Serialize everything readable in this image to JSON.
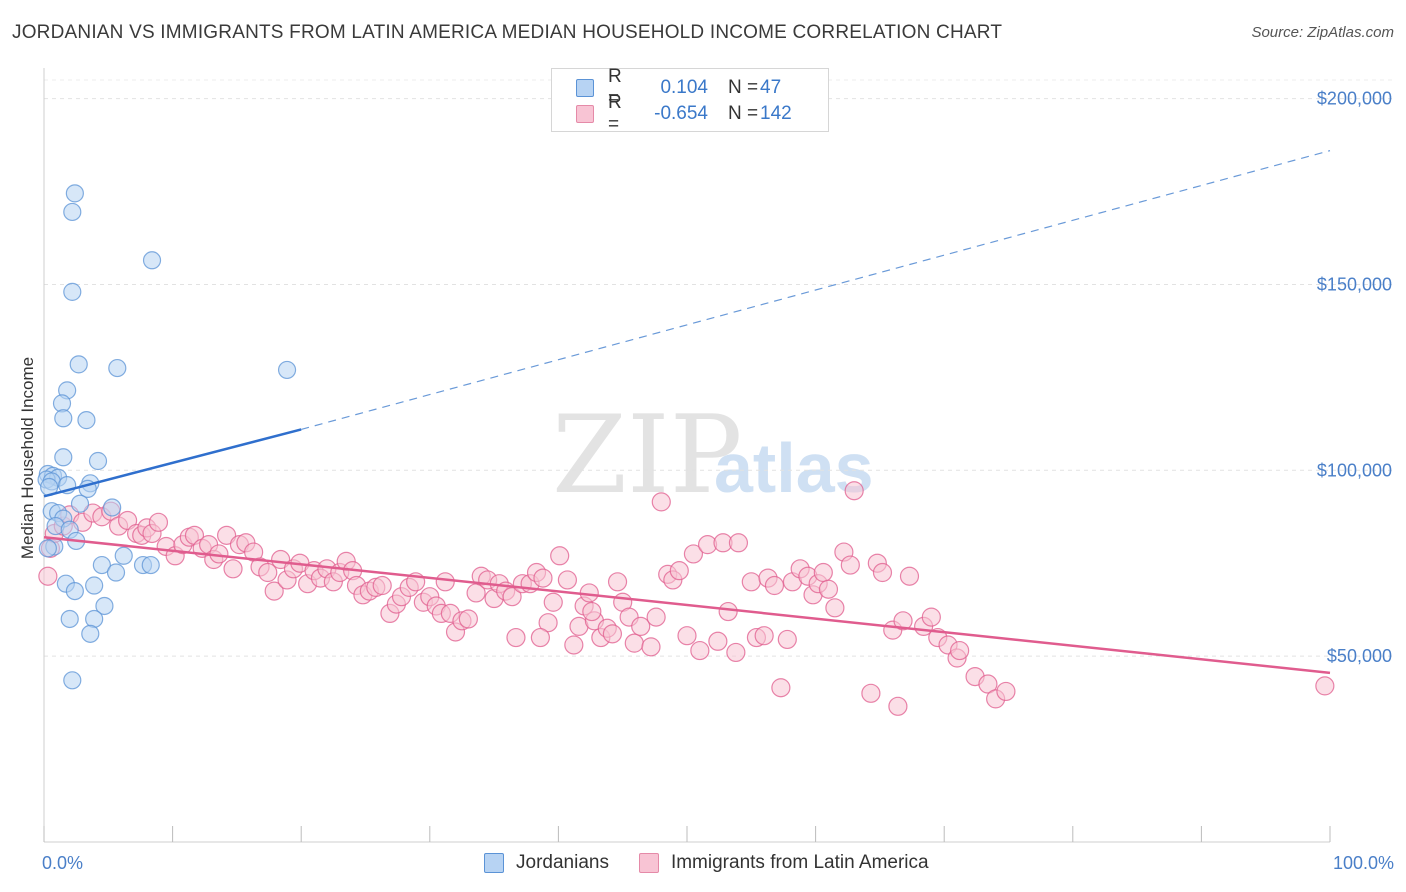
{
  "title": "JORDANIAN VS IMMIGRANTS FROM LATIN AMERICA MEDIAN HOUSEHOLD INCOME CORRELATION CHART",
  "source": "Source: ZipAtlas.com",
  "watermark": {
    "zip": "ZIP",
    "atlas": "atlas"
  },
  "legend": {
    "r_label": "R =",
    "n_label": "N =",
    "rows": [
      {
        "r": "0.104",
        "n": "47",
        "fill": "#b7d3f3",
        "stroke": "#5b93d6"
      },
      {
        "r": "-0.654",
        "n": "142",
        "fill": "#f8c4d4",
        "stroke": "#e58aa8"
      }
    ]
  },
  "bottom_legend": [
    {
      "label": "Jordanians",
      "fill": "#b7d3f3",
      "stroke": "#5b93d6"
    },
    {
      "label": "Immigrants from Latin America",
      "fill": "#f8c4d4",
      "stroke": "#e58aa8"
    }
  ],
  "chart_data": {
    "type": "scatter",
    "title": "JORDANIAN VS IMMIGRANTS FROM LATIN AMERICA MEDIAN HOUSEHOLD INCOME CORRELATION CHART",
    "xlabel": "",
    "ylabel": "Median Household Income",
    "xlim": [
      0,
      100
    ],
    "ylim": [
      0,
      205000
    ],
    "x_tick_labels": {
      "min": "0.0%",
      "max": "100.0%"
    },
    "y_ticks": [
      {
        "value": 50000,
        "label": "$50,000"
      },
      {
        "value": 100000,
        "label": "$100,000"
      },
      {
        "value": 150000,
        "label": "$150,000"
      },
      {
        "value": 200000,
        "label": "$200,000"
      }
    ],
    "grid": true,
    "legend_position": "top-center",
    "series": [
      {
        "name": "Jordanians",
        "color": "#5b93d6",
        "fill": "#b7d3f3",
        "trend": {
          "x0": 0,
          "y0": 93000,
          "x1": 20,
          "y1": 111000,
          "dash_to_x": 100,
          "dash_to_y": 186000
        },
        "points": [
          [
            2.4,
            174500
          ],
          [
            2.2,
            169500
          ],
          [
            8.4,
            156500
          ],
          [
            2.2,
            148000
          ],
          [
            2.7,
            128500
          ],
          [
            5.7,
            127500
          ],
          [
            18.9,
            127000
          ],
          [
            1.8,
            121500
          ],
          [
            1.4,
            118000
          ],
          [
            1.5,
            114000
          ],
          [
            3.3,
            113500
          ],
          [
            1.5,
            103500
          ],
          [
            4.2,
            102500
          ],
          [
            0.3,
            99000
          ],
          [
            0.7,
            98500
          ],
          [
            1.1,
            98000
          ],
          [
            0.2,
            97500
          ],
          [
            0.6,
            97000
          ],
          [
            3.6,
            96500
          ],
          [
            1.8,
            96000
          ],
          [
            0.4,
            95500
          ],
          [
            3.4,
            95000
          ],
          [
            2.8,
            91000
          ],
          [
            5.3,
            90000
          ],
          [
            0.6,
            89000
          ],
          [
            1.1,
            88500
          ],
          [
            1.5,
            87000
          ],
          [
            0.9,
            85000
          ],
          [
            2.0,
            84000
          ],
          [
            2.5,
            81000
          ],
          [
            0.8,
            79500
          ],
          [
            0.3,
            79000
          ],
          [
            6.2,
            77000
          ],
          [
            4.5,
            74500
          ],
          [
            7.7,
            74500
          ],
          [
            8.3,
            74500
          ],
          [
            5.6,
            72500
          ],
          [
            1.7,
            69500
          ],
          [
            3.9,
            69000
          ],
          [
            2.4,
            67500
          ],
          [
            4.7,
            63500
          ],
          [
            2.0,
            60000
          ],
          [
            3.9,
            60000
          ],
          [
            3.6,
            56000
          ],
          [
            2.2,
            43500
          ]
        ]
      },
      {
        "name": "Immigrants from Latin America",
        "color": "#e05c8e",
        "fill": "#f8c4d4",
        "trend": {
          "x0": 0,
          "y0": 82000,
          "x1": 100,
          "y1": 45500
        },
        "points": [
          [
            0.3,
            71500
          ],
          [
            0.5,
            79000
          ],
          [
            0.8,
            83000
          ],
          [
            1.5,
            85000
          ],
          [
            2.0,
            88000
          ],
          [
            3.0,
            86000
          ],
          [
            3.8,
            88500
          ],
          [
            4.5,
            87500
          ],
          [
            5.2,
            89000
          ],
          [
            5.8,
            85000
          ],
          [
            6.5,
            86500
          ],
          [
            7.2,
            83000
          ],
          [
            7.6,
            82500
          ],
          [
            8.0,
            84500
          ],
          [
            8.4,
            83000
          ],
          [
            8.9,
            86000
          ],
          [
            9.5,
            79500
          ],
          [
            10.2,
            77000
          ],
          [
            10.8,
            80000
          ],
          [
            11.3,
            82000
          ],
          [
            11.7,
            82500
          ],
          [
            12.3,
            79000
          ],
          [
            12.8,
            80000
          ],
          [
            13.2,
            76000
          ],
          [
            13.6,
            77500
          ],
          [
            14.2,
            82500
          ],
          [
            14.7,
            73500
          ],
          [
            15.2,
            80000
          ],
          [
            15.7,
            80500
          ],
          [
            16.3,
            78000
          ],
          [
            16.8,
            74000
          ],
          [
            17.4,
            72500
          ],
          [
            17.9,
            67500
          ],
          [
            18.4,
            76000
          ],
          [
            18.9,
            70500
          ],
          [
            19.4,
            73500
          ],
          [
            19.9,
            75000
          ],
          [
            20.5,
            69500
          ],
          [
            21.0,
            73000
          ],
          [
            21.5,
            71000
          ],
          [
            22.0,
            73500
          ],
          [
            22.5,
            70000
          ],
          [
            23.0,
            72500
          ],
          [
            23.5,
            75500
          ],
          [
            24.0,
            73000
          ],
          [
            24.3,
            69000
          ],
          [
            24.8,
            66500
          ],
          [
            25.3,
            67500
          ],
          [
            25.8,
            68500
          ],
          [
            26.3,
            69000
          ],
          [
            26.9,
            61500
          ],
          [
            27.4,
            64000
          ],
          [
            27.8,
            66000
          ],
          [
            28.4,
            68500
          ],
          [
            28.9,
            70000
          ],
          [
            29.5,
            64500
          ],
          [
            30.0,
            66000
          ],
          [
            30.5,
            63500
          ],
          [
            30.9,
            61500
          ],
          [
            31.2,
            70000
          ],
          [
            31.6,
            61500
          ],
          [
            32.0,
            56500
          ],
          [
            32.5,
            59500
          ],
          [
            33.0,
            60000
          ],
          [
            33.6,
            67000
          ],
          [
            34.0,
            71500
          ],
          [
            34.5,
            70500
          ],
          [
            35.0,
            65500
          ],
          [
            35.4,
            69500
          ],
          [
            35.9,
            67500
          ],
          [
            36.4,
            66000
          ],
          [
            36.7,
            55000
          ],
          [
            37.2,
            69500
          ],
          [
            37.8,
            69500
          ],
          [
            38.3,
            72500
          ],
          [
            38.8,
            71000
          ],
          [
            39.2,
            59000
          ],
          [
            39.6,
            64500
          ],
          [
            40.1,
            77000
          ],
          [
            40.7,
            70500
          ],
          [
            41.2,
            53000
          ],
          [
            41.6,
            58000
          ],
          [
            42.0,
            63500
          ],
          [
            42.4,
            67000
          ],
          [
            42.8,
            59500
          ],
          [
            43.3,
            55000
          ],
          [
            43.8,
            57500
          ],
          [
            44.2,
            56000
          ],
          [
            44.6,
            70000
          ],
          [
            45.0,
            64500
          ],
          [
            45.5,
            60500
          ],
          [
            45.9,
            53500
          ],
          [
            46.4,
            58000
          ],
          [
            47.2,
            52500
          ],
          [
            47.6,
            60500
          ],
          [
            48.0,
            91500
          ],
          [
            48.5,
            72000
          ],
          [
            48.9,
            70500
          ],
          [
            49.4,
            73000
          ],
          [
            50.0,
            55500
          ],
          [
            50.5,
            77500
          ],
          [
            51.0,
            51500
          ],
          [
            51.6,
            80000
          ],
          [
            52.4,
            54000
          ],
          [
            52.8,
            80500
          ],
          [
            53.2,
            62000
          ],
          [
            54.0,
            80500
          ],
          [
            55.0,
            70000
          ],
          [
            55.4,
            55000
          ],
          [
            56.0,
            55500
          ],
          [
            56.3,
            71000
          ],
          [
            56.8,
            69000
          ],
          [
            57.3,
            41500
          ],
          [
            57.8,
            54500
          ],
          [
            58.2,
            70000
          ],
          [
            58.8,
            73500
          ],
          [
            59.4,
            71500
          ],
          [
            59.8,
            66500
          ],
          [
            60.2,
            69500
          ],
          [
            60.6,
            72500
          ],
          [
            61.0,
            68000
          ],
          [
            61.5,
            63000
          ],
          [
            62.2,
            78000
          ],
          [
            62.7,
            74500
          ],
          [
            63.0,
            94500
          ],
          [
            64.3,
            40000
          ],
          [
            64.8,
            75000
          ],
          [
            65.2,
            72500
          ],
          [
            66.0,
            57000
          ],
          [
            66.4,
            36500
          ],
          [
            66.8,
            59500
          ],
          [
            67.3,
            71500
          ],
          [
            68.4,
            58000
          ],
          [
            69.0,
            60500
          ],
          [
            69.5,
            55000
          ],
          [
            70.3,
            53000
          ],
          [
            71.0,
            49500
          ],
          [
            71.2,
            51500
          ],
          [
            72.4,
            44500
          ],
          [
            73.4,
            42500
          ],
          [
            74.0,
            38500
          ],
          [
            74.8,
            40500
          ],
          [
            38.6,
            55000
          ],
          [
            42.6,
            62000
          ],
          [
            53.8,
            51000
          ],
          [
            99.6,
            42000
          ]
        ]
      }
    ]
  }
}
